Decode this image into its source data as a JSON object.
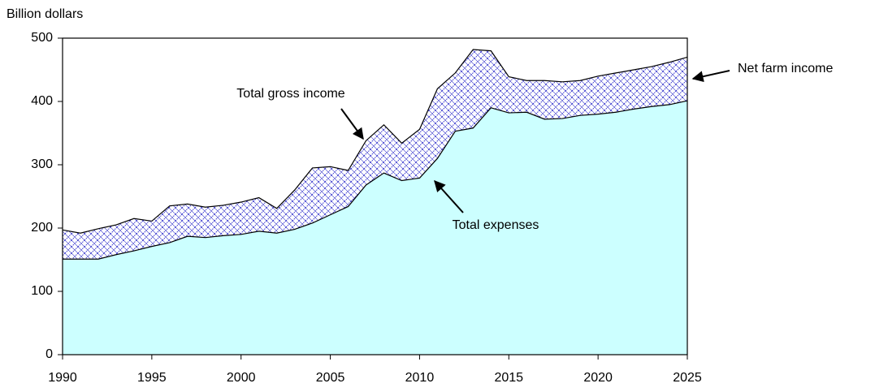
{
  "chart_data": {
    "type": "area",
    "y_axis_label": "Billion dollars",
    "x": [
      1990,
      1991,
      1992,
      1993,
      1994,
      1995,
      1996,
      1997,
      1998,
      1999,
      2000,
      2001,
      2002,
      2003,
      2004,
      2005,
      2006,
      2007,
      2008,
      2009,
      2010,
      2011,
      2012,
      2013,
      2014,
      2015,
      2016,
      2017,
      2018,
      2019,
      2020,
      2021,
      2022,
      2023,
      2024,
      2025
    ],
    "series": [
      {
        "name": "Total gross income",
        "color": "#3333cc",
        "values": [
          197,
          192,
          199,
          205,
          215,
          211,
          235,
          238,
          233,
          236,
          241,
          248,
          231,
          260,
          295,
          297,
          291,
          338,
          363,
          334,
          356,
          420,
          445,
          482,
          480,
          439,
          433,
          433,
          431,
          433,
          440,
          445,
          450,
          455,
          462,
          470
        ]
      },
      {
        "name": "Total expenses",
        "color": "#ccffff",
        "values": [
          151,
          151,
          151,
          158,
          164,
          171,
          177,
          187,
          185,
          188,
          190,
          195,
          192,
          198,
          208,
          221,
          234,
          268,
          287,
          275,
          279,
          310,
          353,
          358,
          390,
          382,
          383,
          372,
          373,
          378,
          380,
          383,
          388,
          392,
          395,
          401
        ]
      }
    ],
    "annotations": [
      "Net farm income"
    ],
    "xlim": [
      1990,
      2025
    ],
    "xticks": [
      1990,
      1995,
      2000,
      2005,
      2010,
      2015,
      2020,
      2025
    ],
    "ylim": [
      0,
      500
    ],
    "yticks": [
      0,
      100,
      200,
      300,
      400,
      500
    ]
  }
}
